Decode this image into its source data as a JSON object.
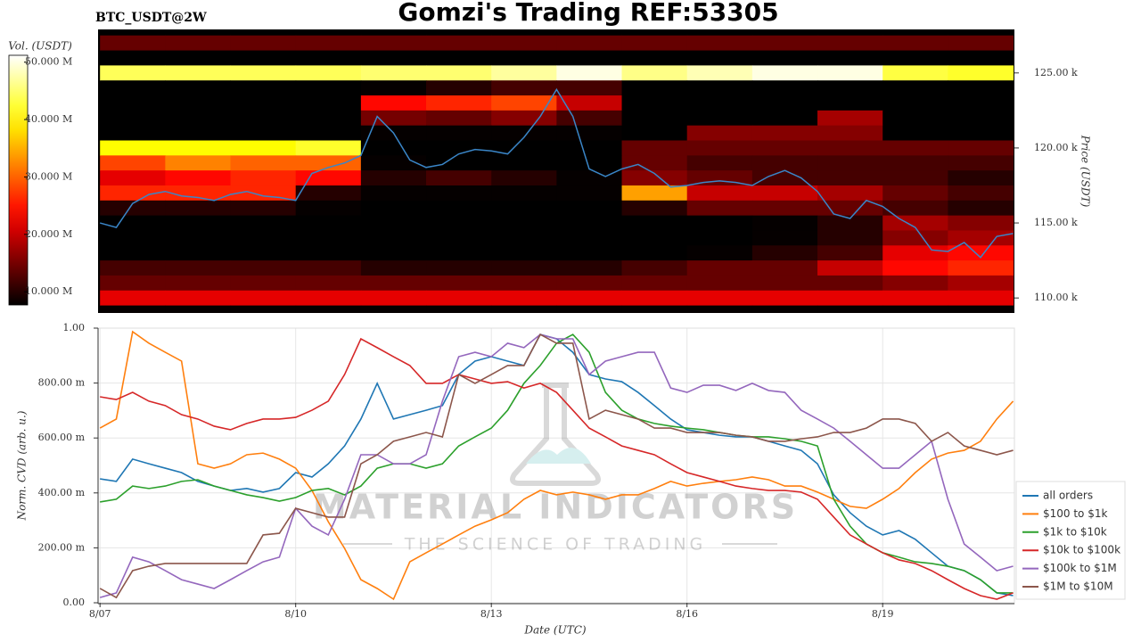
{
  "title": "Gomzi's Trading REF:53305",
  "watermark": {
    "name": "MATERIAL INDICATORS",
    "tagline": "THE SCIENCE OF TRADING"
  },
  "chart_data": [
    {
      "type": "heatmap",
      "subtitle": "BTC_USDT@2W",
      "ylabel": "Price (USDT)",
      "colorbar_label": "Vol. (USDT)",
      "colormap": "hot",
      "clim": [
        7700000.0,
        51200000.0
      ],
      "cticks": [
        {
          "value": 10000000.0,
          "label": "10.000 M"
        },
        {
          "value": 20000000.0,
          "label": "20.000 M"
        },
        {
          "value": 30000000.0,
          "label": "30.000 M"
        },
        {
          "value": 40000000.0,
          "label": "40.000 M"
        },
        {
          "value": 50000000.0,
          "label": "50.000 M"
        }
      ],
      "xlim": [
        6.97,
        21.02
      ],
      "ylim": [
        109000,
        127900
      ],
      "yticks": [
        {
          "value": 110000,
          "label": "110.00 k"
        },
        {
          "value": 115000,
          "label": "115.00 k"
        },
        {
          "value": 120000,
          "label": "120.00 k"
        },
        {
          "value": 125000,
          "label": "125.00 k"
        }
      ],
      "x_edges": [
        7,
        8,
        9,
        10,
        11,
        12,
        13,
        14,
        15,
        16,
        17,
        18,
        19,
        20,
        21
      ],
      "y_levels": [
        127000,
        126000,
        125000,
        124000,
        123000,
        122000,
        121000,
        120000,
        119000,
        118000,
        117000,
        116000,
        115000,
        114000,
        113000,
        112000,
        111000,
        110000,
        109000
      ],
      "z": [
        [
          14000000.0,
          14000000.0,
          14000000.0,
          14000000.0,
          14000000.0,
          14000000.0,
          14000000.0,
          14000000.0,
          14000000.0,
          14000000.0,
          14000000.0,
          14000000.0,
          14000000.0,
          14000000.0
        ],
        [
          6000000.0,
          6000000.0,
          6000000.0,
          6000000.0,
          6000000.0,
          6000000.0,
          6000000.0,
          6000000.0,
          6000000.0,
          6000000.0,
          6000000.0,
          6000000.0,
          6000000.0,
          6000000.0
        ],
        [
          44000000.0,
          44000000.0,
          44000000.0,
          44000000.0,
          45000000.0,
          45000000.0,
          47000000.0,
          50000000.0,
          46000000.0,
          48000000.0,
          50000000.0,
          50000000.0,
          43000000.0,
          42000000.0
        ],
        [
          3000000.0,
          3000000.0,
          3000000.0,
          3000000.0,
          8000000.0,
          10000000.0,
          12000000.0,
          12000000.0,
          4000000.0,
          3000000.0,
          3000000.0,
          3000000.0,
          3000000.0,
          3000000.0
        ],
        [
          3000000.0,
          3000000.0,
          3000000.0,
          3000000.0,
          24000000.0,
          26000000.0,
          28000000.0,
          20000000.0,
          4000000.0,
          4000000.0,
          4000000.0,
          4000000.0,
          3000000.0,
          3000000.0
        ],
        [
          3000000.0,
          3000000.0,
          3000000.0,
          3000000.0,
          15000000.0,
          14000000.0,
          16000000.0,
          12000000.0,
          4000000.0,
          4000000.0,
          5000000.0,
          18000000.0,
          6000000.0,
          4000000.0
        ],
        [
          4000000.0,
          4000000.0,
          4000000.0,
          4000000.0,
          8000000.0,
          8000000.0,
          8000000.0,
          8000000.0,
          5000000.0,
          16000000.0,
          16000000.0,
          16000000.0,
          5000000.0,
          4000000.0
        ],
        [
          40000000.0,
          40000000.0,
          40000000.0,
          42000000.0,
          6000000.0,
          5000000.0,
          5000000.0,
          6000000.0,
          14000000.0,
          14000000.0,
          14000000.0,
          14000000.0,
          14000000.0,
          14000000.0
        ],
        [
          28000000.0,
          32000000.0,
          30000000.0,
          30000000.0,
          8000000.0,
          6000000.0,
          6000000.0,
          6000000.0,
          14000000.0,
          12000000.0,
          12000000.0,
          12000000.0,
          12000000.0,
          12000000.0
        ],
        [
          22000000.0,
          24000000.0,
          26000000.0,
          24000000.0,
          10000000.0,
          12000000.0,
          10000000.0,
          8000000.0,
          16000000.0,
          14000000.0,
          12000000.0,
          12000000.0,
          12000000.0,
          10000000.0
        ],
        [
          26000000.0,
          26000000.0,
          26000000.0,
          10000000.0,
          8000000.0,
          8000000.0,
          8000000.0,
          8000000.0,
          34000000.0,
          20000000.0,
          20000000.0,
          18000000.0,
          14000000.0,
          12000000.0
        ],
        [
          10000000.0,
          10000000.0,
          10000000.0,
          8000000.0,
          6000000.0,
          6000000.0,
          5000000.0,
          5000000.0,
          10000000.0,
          14000000.0,
          14000000.0,
          14000000.0,
          12000000.0,
          10000000.0
        ],
        [
          6000000.0,
          6000000.0,
          6000000.0,
          5000000.0,
          4000000.0,
          4000000.0,
          3000000.0,
          3000000.0,
          6000000.0,
          6000000.0,
          8000000.0,
          10000000.0,
          18000000.0,
          16000000.0
        ],
        [
          4000000.0,
          4000000.0,
          4000000.0,
          4000000.0,
          3000000.0,
          3000000.0,
          3000000.0,
          3000000.0,
          4000000.0,
          6000000.0,
          8000000.0,
          10000000.0,
          16000000.0,
          18000000.0
        ],
        [
          6000000.0,
          6000000.0,
          6000000.0,
          6000000.0,
          5000000.0,
          5000000.0,
          4000000.0,
          4000000.0,
          6000000.0,
          8000000.0,
          10000000.0,
          12000000.0,
          22000000.0,
          24000000.0
        ],
        [
          12000000.0,
          12000000.0,
          12000000.0,
          12000000.0,
          10000000.0,
          10000000.0,
          10000000.0,
          10000000.0,
          12000000.0,
          14000000.0,
          14000000.0,
          20000000.0,
          24000000.0,
          26000000.0
        ],
        [
          14000000.0,
          14000000.0,
          14000000.0,
          14000000.0,
          14000000.0,
          14000000.0,
          14000000.0,
          14000000.0,
          14000000.0,
          14000000.0,
          14000000.0,
          14000000.0,
          16000000.0,
          18000000.0
        ],
        [
          22000000.0,
          22000000.0,
          22000000.0,
          22000000.0,
          22000000.0,
          22000000.0,
          22000000.0,
          22000000.0,
          22000000.0,
          22000000.0,
          22000000.0,
          22000000.0,
          22000000.0,
          22000000.0
        ],
        [
          8000000.0,
          8000000.0,
          8000000.0,
          8000000.0,
          8000000.0,
          8000000.0,
          8000000.0,
          8000000.0,
          8000000.0,
          8000000.0,
          8000000.0,
          8000000.0,
          8000000.0,
          8000000.0
        ]
      ],
      "x": [
        7,
        7.25,
        7.5,
        7.75,
        8,
        8.25,
        8.5,
        8.75,
        9,
        9.25,
        9.5,
        9.75,
        10,
        10.25,
        10.5,
        10.75,
        11,
        11.25,
        11.5,
        11.75,
        12,
        12.25,
        12.5,
        12.75,
        13,
        13.25,
        13.5,
        13.75,
        14,
        14.25,
        14.5,
        14.75,
        15,
        15.25,
        15.5,
        15.75,
        16,
        16.25,
        16.5,
        16.75,
        17,
        17.25,
        17.5,
        17.75,
        18,
        18.25,
        18.5,
        18.75,
        19,
        19.25,
        19.5,
        19.75,
        20,
        20.25,
        20.5,
        20.75,
        21
      ],
      "series": [
        {
          "color": "#3a86c8",
          "values": [
            115000,
            114700,
            116300,
            116900,
            117100,
            116800,
            116700,
            116500,
            116900,
            117100,
            116800,
            116700,
            116500,
            118300,
            118700,
            119000,
            119500,
            122100,
            121000,
            119200,
            118700,
            118900,
            119600,
            119900,
            119800,
            119600,
            120700,
            122100,
            123900,
            122100,
            118600,
            118100,
            118600,
            118900,
            118300,
            117400,
            117500,
            117700,
            117800,
            117700,
            117500,
            118100,
            118500,
            118000,
            117100,
            115600,
            115300,
            116500,
            116100,
            115300,
            114700,
            113200,
            113100,
            113700,
            112700,
            114100,
            114300
          ]
        }
      ]
    },
    {
      "type": "line",
      "ylabel": "Norm. CVD (arb. u.)",
      "xlabel": "Date (UTC)",
      "grid": true,
      "legend": "right",
      "xlim": [
        6.97,
        21.02
      ],
      "ylim": [
        0,
        1
      ],
      "xticks": [
        {
          "value": 7,
          "label": "8/07"
        },
        {
          "value": 10,
          "label": "8/10"
        },
        {
          "value": 13,
          "label": "8/13"
        },
        {
          "value": 16,
          "label": "8/16"
        },
        {
          "value": 19,
          "label": "8/19"
        }
      ],
      "yticks": [
        {
          "value": 0,
          "label": "0.00"
        },
        {
          "value": 0.2,
          "label": "200.00 m"
        },
        {
          "value": 0.4,
          "label": "400.00 m"
        },
        {
          "value": 0.6,
          "label": "600.00 m"
        },
        {
          "value": 0.8,
          "label": "800.00 m"
        },
        {
          "value": 1,
          "label": "1.00"
        }
      ],
      "x": [
        7,
        7.25,
        7.5,
        7.75,
        8,
        8.25,
        8.5,
        8.75,
        9,
        9.25,
        9.5,
        9.75,
        10,
        10.25,
        10.5,
        10.75,
        11,
        11.25,
        11.5,
        11.75,
        12,
        12.25,
        12.5,
        12.75,
        13,
        13.25,
        13.5,
        13.75,
        14,
        14.25,
        14.5,
        14.75,
        15,
        15.25,
        15.5,
        15.75,
        16,
        16.25,
        16.5,
        16.75,
        17,
        17.25,
        17.5,
        17.75,
        18,
        18.25,
        18.5,
        18.75,
        19,
        19.25,
        19.5,
        19.75,
        20,
        20.25,
        20.5,
        20.75,
        21
      ],
      "series": [
        {
          "name": "all orders",
          "color": "#1f77b4",
          "values": [
            0.451,
            0.442,
            0.523,
            0.506,
            0.49,
            0.474,
            0.442,
            0.425,
            0.409,
            0.416,
            0.403,
            0.416,
            0.474,
            0.458,
            0.506,
            0.571,
            0.669,
            0.799,
            0.669,
            0.685,
            0.701,
            0.718,
            0.831,
            0.88,
            0.896,
            0.88,
            0.864,
            0.977,
            0.961,
            0.912,
            0.831,
            0.815,
            0.805,
            0.766,
            0.718,
            0.669,
            0.63,
            0.62,
            0.61,
            0.604,
            0.604,
            0.588,
            0.571,
            0.555,
            0.506,
            0.393,
            0.328,
            0.279,
            0.247,
            0.263,
            0.231,
            0.182,
            0.133,
            0.117,
            0.084,
            0.036,
            0.026
          ]
        },
        {
          "name": "$100 to $1k",
          "color": "#ff7f0e",
          "values": [
            0.636,
            0.669,
            0.987,
            0.945,
            0.912,
            0.88,
            0.506,
            0.49,
            0.506,
            0.539,
            0.545,
            0.523,
            0.49,
            0.409,
            0.295,
            0.198,
            0.084,
            0.052,
            0.013,
            0.149,
            0.182,
            0.214,
            0.247,
            0.279,
            0.302,
            0.328,
            0.377,
            0.409,
            0.393,
            0.403,
            0.393,
            0.377,
            0.393,
            0.393,
            0.416,
            0.442,
            0.425,
            0.435,
            0.442,
            0.448,
            0.458,
            0.448,
            0.425,
            0.425,
            0.403,
            0.377,
            0.351,
            0.344,
            0.377,
            0.416,
            0.474,
            0.523,
            0.545,
            0.555,
            0.588,
            0.669,
            0.734
          ]
        },
        {
          "name": "$1k to $10k",
          "color": "#2ca02c",
          "values": [
            0.367,
            0.377,
            0.425,
            0.416,
            0.425,
            0.442,
            0.448,
            0.425,
            0.409,
            0.393,
            0.383,
            0.37,
            0.383,
            0.409,
            0.416,
            0.393,
            0.425,
            0.49,
            0.506,
            0.506,
            0.49,
            0.506,
            0.571,
            0.604,
            0.636,
            0.701,
            0.799,
            0.864,
            0.945,
            0.977,
            0.912,
            0.766,
            0.701,
            0.669,
            0.653,
            0.643,
            0.636,
            0.63,
            0.62,
            0.61,
            0.604,
            0.604,
            0.597,
            0.588,
            0.571,
            0.377,
            0.279,
            0.214,
            0.182,
            0.166,
            0.149,
            0.143,
            0.133,
            0.117,
            0.084,
            0.036,
            0.036
          ]
        },
        {
          "name": "$10k to $100k",
          "color": "#d62728",
          "values": [
            0.75,
            0.74,
            0.766,
            0.734,
            0.718,
            0.685,
            0.669,
            0.643,
            0.63,
            0.653,
            0.669,
            0.669,
            0.675,
            0.701,
            0.734,
            0.831,
            0.961,
            0.929,
            0.896,
            0.864,
            0.799,
            0.799,
            0.831,
            0.815,
            0.799,
            0.805,
            0.782,
            0.799,
            0.766,
            0.701,
            0.636,
            0.604,
            0.571,
            0.555,
            0.539,
            0.506,
            0.474,
            0.458,
            0.442,
            0.425,
            0.416,
            0.409,
            0.409,
            0.403,
            0.377,
            0.312,
            0.247,
            0.214,
            0.182,
            0.156,
            0.143,
            0.117,
            0.084,
            0.052,
            0.026,
            0.013,
            0.036
          ]
        },
        {
          "name": "$100k to $1M",
          "color": "#9467bd",
          "values": [
            0.019,
            0.036,
            0.166,
            0.149,
            0.117,
            0.084,
            0.068,
            0.052,
            0.084,
            0.117,
            0.149,
            0.166,
            0.344,
            0.279,
            0.247,
            0.377,
            0.539,
            0.539,
            0.506,
            0.506,
            0.539,
            0.734,
            0.896,
            0.912,
            0.896,
            0.945,
            0.929,
            0.977,
            0.961,
            0.961,
            0.831,
            0.88,
            0.896,
            0.912,
            0.912,
            0.782,
            0.766,
            0.792,
            0.792,
            0.773,
            0.799,
            0.773,
            0.766,
            0.701,
            0.669,
            0.636,
            0.588,
            0.539,
            0.49,
            0.49,
            0.539,
            0.588,
            0.377,
            0.214,
            0.166,
            0.117,
            0.133
          ]
        },
        {
          "name": "$1M to $10M",
          "color": "#8c564b",
          "values": [
            0.052,
            0.019,
            0.117,
            0.133,
            0.143,
            0.143,
            0.143,
            0.143,
            0.143,
            0.143,
            0.247,
            0.253,
            0.344,
            0.328,
            0.312,
            0.312,
            0.506,
            0.539,
            0.588,
            0.604,
            0.62,
            0.604,
            0.831,
            0.799,
            0.831,
            0.864,
            0.864,
            0.977,
            0.945,
            0.945,
            0.669,
            0.701,
            0.685,
            0.669,
            0.636,
            0.636,
            0.62,
            0.62,
            0.62,
            0.61,
            0.604,
            0.588,
            0.588,
            0.597,
            0.604,
            0.62,
            0.62,
            0.636,
            0.669,
            0.669,
            0.653,
            0.588,
            0.62,
            0.571,
            0.555,
            0.539,
            0.555
          ]
        }
      ]
    }
  ]
}
